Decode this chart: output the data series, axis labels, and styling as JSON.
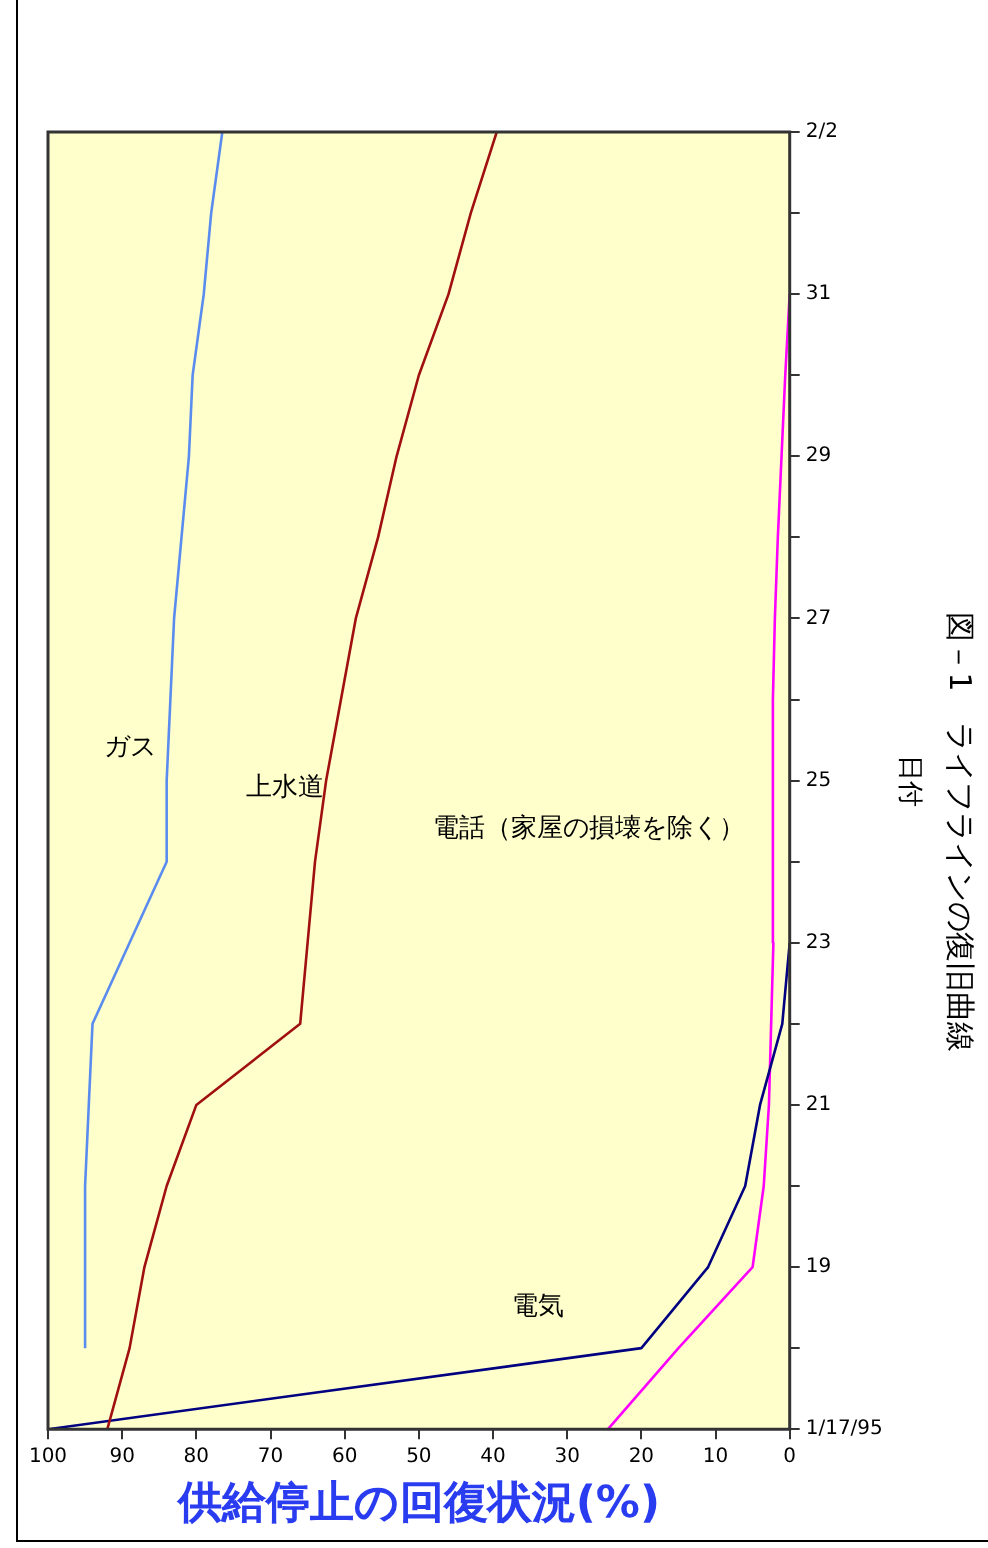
{
  "chart_data": {
    "type": "line",
    "orientation": "horizontal",
    "title": "図－1　ライフラインの復旧曲線",
    "xlabel": "供給停止の回復状況(%)",
    "ylabel": "日付",
    "x": [
      "1995-01-17",
      "1995-01-18",
      "1995-01-19",
      "1995-01-20",
      "1995-01-21",
      "1995-01-22",
      "1995-01-23",
      "1995-01-24",
      "1995-01-25",
      "1995-01-26",
      "1995-01-27",
      "1995-01-28",
      "1995-01-29",
      "1995-01-30",
      "1995-01-31",
      "1995-02-01",
      "1995-02-02"
    ],
    "series": [
      {
        "name": "ガス",
        "color": "#5a8cf0",
        "values": [
          null,
          95,
          95,
          95,
          94.5,
          94,
          89,
          84,
          84,
          83.5,
          83,
          82,
          81,
          80.5,
          79,
          78,
          76.5
        ]
      },
      {
        "name": "上水道",
        "color": "#a01010",
        "values": [
          92,
          89,
          87,
          84,
          80,
          66,
          65,
          64,
          62.5,
          60.5,
          58.5,
          55.5,
          53,
          50,
          46,
          43,
          39.5
        ]
      },
      {
        "name": "電気",
        "color": "#000080",
        "values": [
          100,
          20,
          11,
          6,
          4,
          1,
          0,
          null,
          null,
          null,
          null,
          null,
          null,
          null,
          null,
          null,
          null
        ]
      },
      {
        "name": "電話（家屋の損壊を除く）",
        "color": "#ff00ff",
        "values": [
          24.5,
          15,
          5,
          3.5,
          2.8,
          2.5,
          2.2,
          2.3,
          2.3,
          2.2,
          2,
          1.6,
          1.1,
          0.6,
          0,
          null,
          null
        ]
      }
    ],
    "xlim": [
      100,
      0
    ],
    "xticks": [
      0,
      10,
      20,
      30,
      40,
      50,
      60,
      70,
      80,
      90,
      100
    ],
    "ylim": [
      "1995-01-17",
      "1995-02-02"
    ],
    "yticks": [
      {
        "value": "1995-01-17",
        "label": "1/17/95"
      },
      {
        "value": "1995-01-18",
        "label": null
      },
      {
        "value": "1995-01-19",
        "label": "19"
      },
      {
        "value": "1995-01-20",
        "label": null
      },
      {
        "value": "1995-01-21",
        "label": "21"
      },
      {
        "value": "1995-01-22",
        "label": null
      },
      {
        "value": "1995-01-23",
        "label": "23"
      },
      {
        "value": "1995-01-24",
        "label": null
      },
      {
        "value": "1995-01-25",
        "label": "25"
      },
      {
        "value": "1995-01-26",
        "label": null
      },
      {
        "value": "1995-01-27",
        "label": "27"
      },
      {
        "value": "1995-01-28",
        "label": null
      },
      {
        "value": "1995-01-29",
        "label": "29"
      },
      {
        "value": "1995-01-30",
        "label": null
      },
      {
        "value": "1995-01-31",
        "label": "31"
      },
      {
        "value": "1995-02-01",
        "label": null
      },
      {
        "value": "1995-02-02",
        "label": "2/2"
      }
    ],
    "grid": false,
    "legend": false,
    "marker": "none",
    "line_style": "solid"
  }
}
